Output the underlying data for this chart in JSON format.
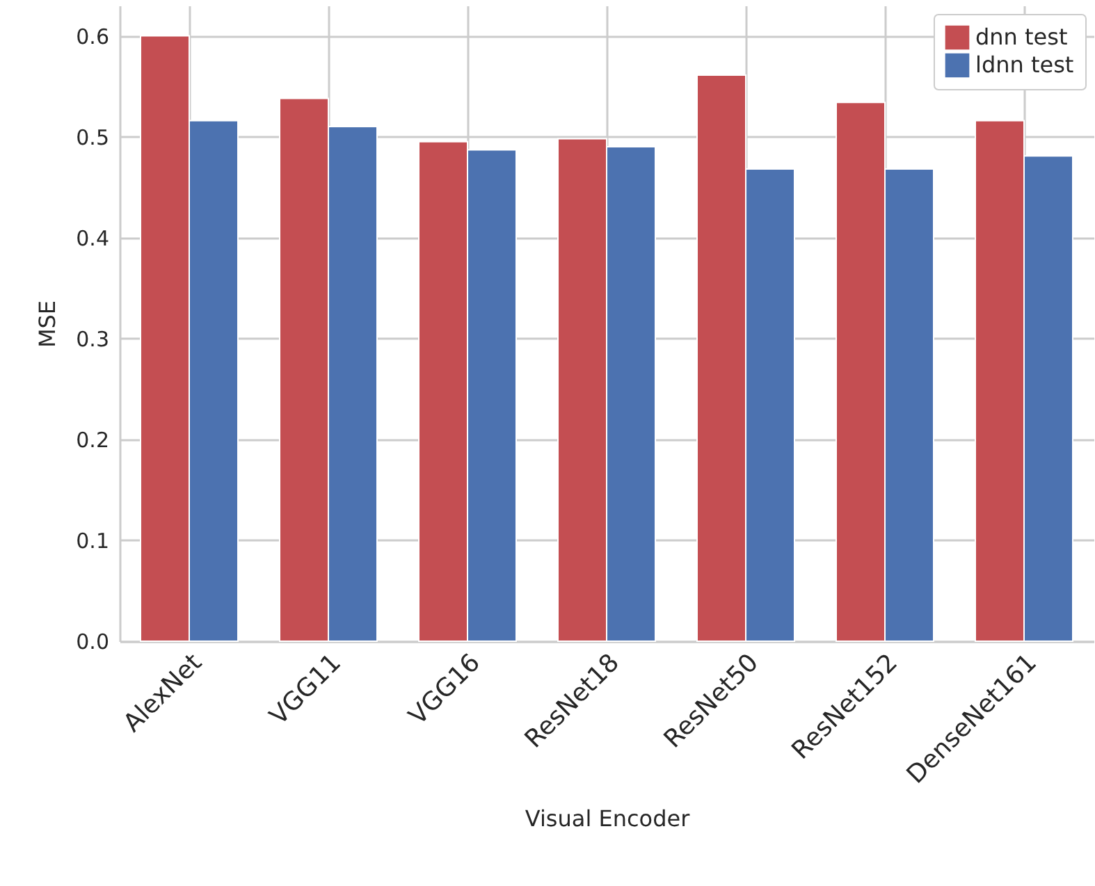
{
  "chart_data": {
    "type": "bar",
    "xlabel": "Visual Encoder",
    "ylabel": "MSE",
    "categories": [
      "AlexNet",
      "VGG11",
      "VGG16",
      "ResNet18",
      "ResNet50",
      "ResNet152",
      "DenseNet161"
    ],
    "series": [
      {
        "name": "dnn test",
        "color": "#c44e52",
        "values": [
          0.6,
          0.538,
          0.495,
          0.498,
          0.561,
          0.534,
          0.516
        ]
      },
      {
        "name": "ldnn test",
        "color": "#4c72b0",
        "values": [
          0.516,
          0.51,
          0.487,
          0.49,
          0.468,
          0.468,
          0.481
        ]
      }
    ],
    "ylim": [
      0,
      0.63
    ],
    "yticks": [
      {
        "value": 0,
        "label": "0.0"
      },
      0.1,
      0.2,
      0.3,
      0.4,
      0.5,
      0.6
    ],
    "grid": true,
    "legend": "top right"
  }
}
